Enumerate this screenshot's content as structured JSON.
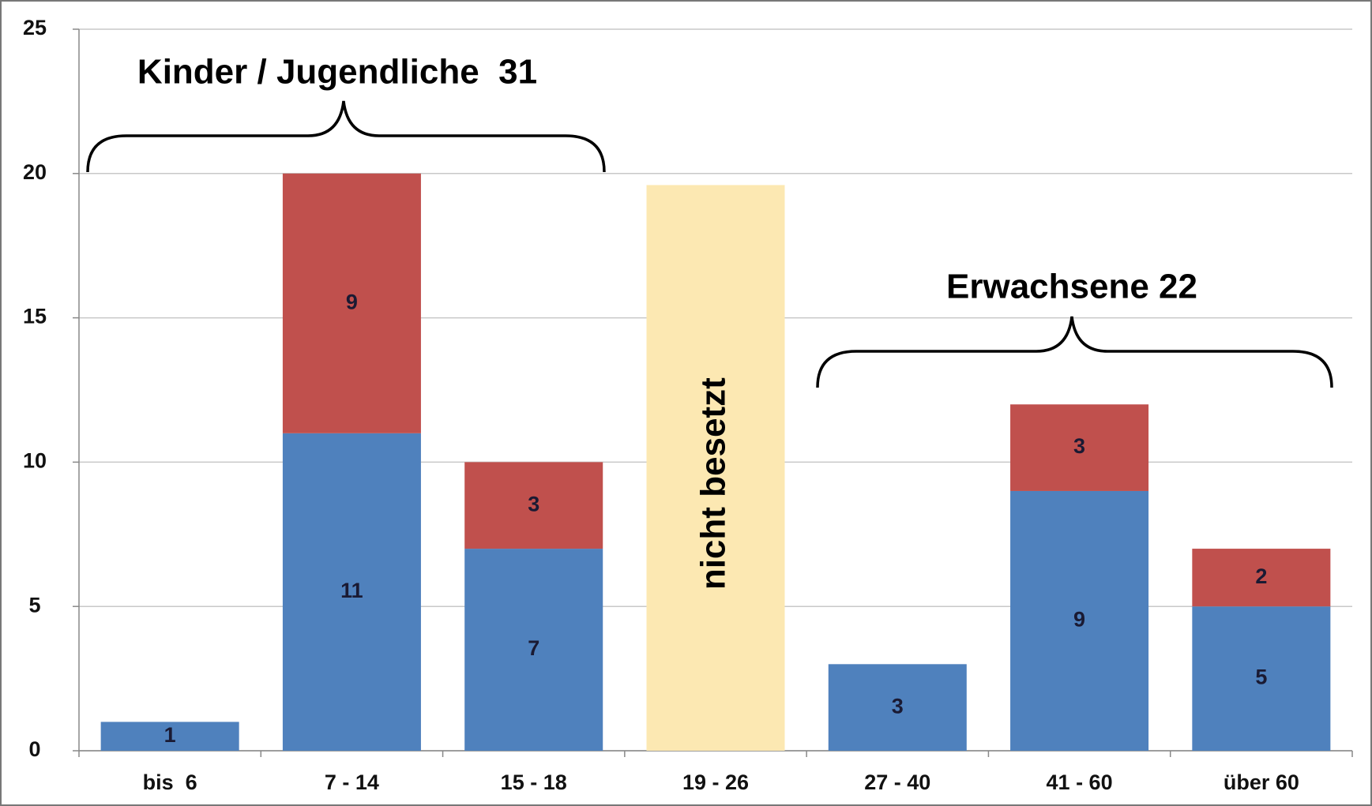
{
  "chart_data": {
    "type": "bar",
    "stacked": true,
    "categories": [
      "bis  6",
      "7 - 14",
      "15 - 18",
      "19 - 26",
      "27 - 40",
      "41 - 60",
      "über 60"
    ],
    "series": [
      {
        "color": "#4f81bd",
        "data_labels": true,
        "values": [
          1,
          11,
          7,
          null,
          3,
          9,
          5
        ]
      },
      {
        "color": "#c0504d",
        "data_labels": true,
        "values": [
          null,
          9,
          3,
          null,
          null,
          3,
          2
        ]
      },
      {
        "color": "#fce8b2",
        "data_labels": false,
        "values": [
          null,
          null,
          null,
          19.6,
          null,
          null,
          null
        ]
      }
    ],
    "annotations": [
      "nicht besetzt"
    ],
    "group_labels": [
      "Kinder / Jugendliche  31",
      "Erwachsene 22"
    ],
    "ylim": [
      0,
      25
    ],
    "yticks": [
      0,
      5,
      10,
      15,
      20,
      25
    ],
    "grid": true
  }
}
